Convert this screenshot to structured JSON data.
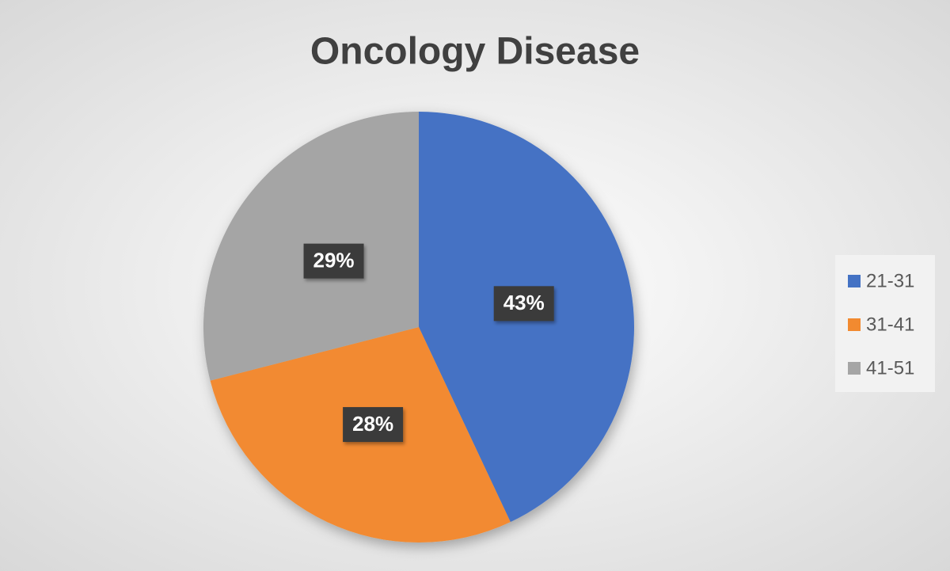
{
  "chart_data": {
    "type": "pie",
    "title": "Oncology Disease",
    "categories": [
      "21-31",
      "31-41",
      "41-51"
    ],
    "values": [
      43,
      28,
      29
    ],
    "value_labels": [
      "43%",
      "28%",
      "29%"
    ],
    "colors": [
      "#4472c4",
      "#f28a30",
      "#a5a5a5"
    ],
    "legend": "right"
  }
}
